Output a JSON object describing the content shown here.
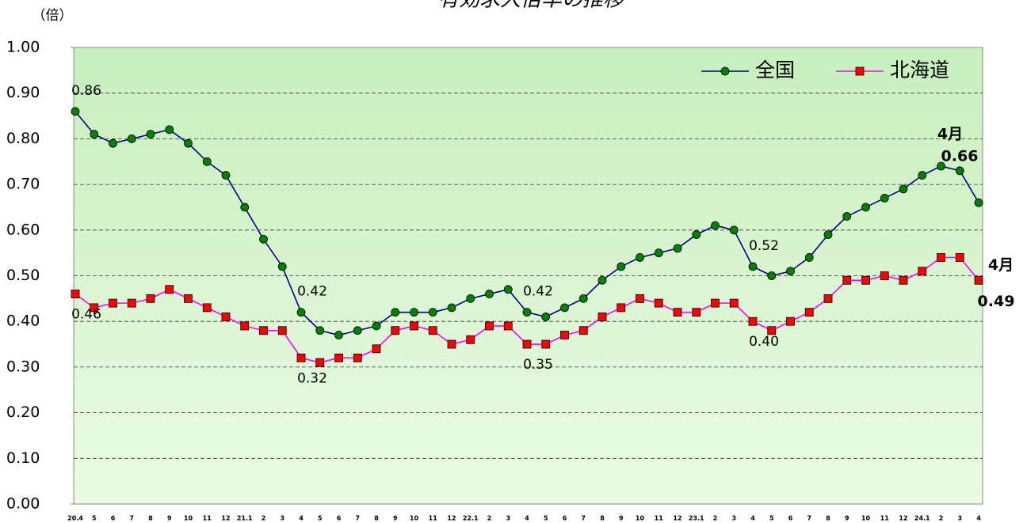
{
  "chart_data": {
    "type": "line",
    "title": "有効求人倍率の推移",
    "y_label": "（倍）",
    "categories": [
      "20.4",
      "5",
      "6",
      "7",
      "8",
      "9",
      "10",
      "11",
      "12",
      "21.1",
      "2",
      "3",
      "4",
      "5",
      "6",
      "7",
      "8",
      "9",
      "10",
      "11",
      "12",
      "22.1",
      "2",
      "3",
      "4",
      "5",
      "6",
      "7",
      "8",
      "9",
      "10",
      "11",
      "12",
      "23.1",
      "2",
      "3",
      "4",
      "5",
      "6",
      "7",
      "8",
      "9",
      "10",
      "11",
      "12",
      "24.1",
      "2",
      "3",
      "4"
    ],
    "series": [
      {
        "name": "全国",
        "color": "#000080",
        "marker_color": "#008000",
        "marker": "circle",
        "note": "4月",
        "values": [
          0.86,
          0.81,
          0.79,
          0.8,
          0.81,
          0.82,
          0.79,
          0.75,
          0.72,
          0.65,
          0.58,
          0.52,
          0.42,
          0.38,
          0.37,
          0.38,
          0.39,
          0.42,
          0.42,
          0.42,
          0.43,
          0.45,
          0.46,
          0.47,
          0.42,
          0.41,
          0.43,
          0.45,
          0.49,
          0.52,
          0.54,
          0.55,
          0.56,
          0.59,
          0.61,
          0.6,
          0.52,
          0.5,
          0.51,
          0.54,
          0.59,
          0.63,
          0.65,
          0.67,
          0.69,
          0.72,
          0.74,
          0.73,
          0.66
        ],
        "value_labels": [
          "0.86",
          null,
          null,
          null,
          null,
          null,
          null,
          null,
          null,
          null,
          null,
          null,
          "0.42",
          null,
          null,
          null,
          null,
          null,
          null,
          null,
          null,
          null,
          null,
          null,
          "0.42",
          null,
          null,
          null,
          null,
          null,
          null,
          null,
          null,
          null,
          null,
          null,
          "0.52",
          null,
          null,
          null,
          null,
          null,
          null,
          null,
          null,
          null,
          null,
          null,
          "0.66"
        ]
      },
      {
        "name": "北海道",
        "color": "#ff00ff",
        "marker_color": "#ff0000",
        "marker": "square",
        "note": "4月",
        "values": [
          0.46,
          0.43,
          0.44,
          0.44,
          0.45,
          0.47,
          0.45,
          0.43,
          0.41,
          0.39,
          0.38,
          0.38,
          0.32,
          0.31,
          0.32,
          0.32,
          0.34,
          0.38,
          0.39,
          0.38,
          0.35,
          0.36,
          0.39,
          0.39,
          0.35,
          0.35,
          0.37,
          0.38,
          0.41,
          0.43,
          0.45,
          0.44,
          0.42,
          0.42,
          0.44,
          0.44,
          0.4,
          0.38,
          0.4,
          0.42,
          0.45,
          0.49,
          0.49,
          0.5,
          0.49,
          0.51,
          0.54,
          0.54,
          0.49
        ],
        "value_labels": [
          "0.46",
          null,
          null,
          null,
          null,
          null,
          null,
          null,
          null,
          null,
          null,
          null,
          "0.32",
          null,
          null,
          null,
          null,
          null,
          null,
          null,
          null,
          null,
          null,
          null,
          "0.35",
          null,
          null,
          null,
          null,
          null,
          null,
          null,
          null,
          null,
          null,
          null,
          "0.40",
          null,
          null,
          null,
          null,
          null,
          null,
          null,
          null,
          null,
          null,
          null,
          "0.49"
        ]
      }
    ],
    "ylim": [
      0,
      1
    ],
    "yticks": [
      {
        "value": 0,
        "label": "0.00"
      },
      {
        "value": 0.1,
        "label": "0.10"
      },
      {
        "value": 0.2,
        "label": "0.20"
      },
      {
        "value": 0.3,
        "label": "0.30"
      },
      {
        "value": 0.4,
        "label": "0.40"
      },
      {
        "value": 0.5,
        "label": "0.50"
      },
      {
        "value": 0.6,
        "label": "0.60"
      },
      {
        "value": 0.7,
        "label": "0.70"
      },
      {
        "value": 0.8,
        "label": "0.80"
      },
      {
        "value": 0.9,
        "label": "0.90"
      },
      {
        "value": 1,
        "label": "1.00"
      }
    ],
    "grid": true,
    "legend": "upper right",
    "background": "#d6f5cc"
  }
}
